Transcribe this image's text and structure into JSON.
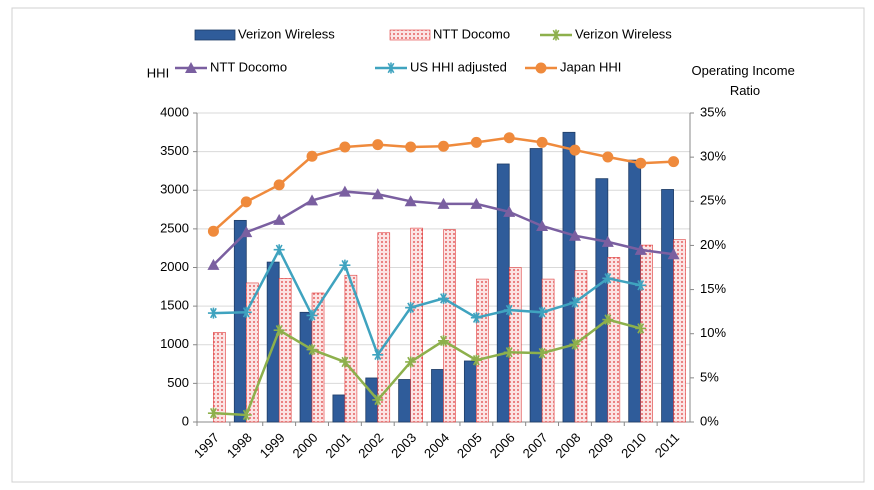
{
  "chart_data": {
    "type": "bar",
    "y_label": "HHI",
    "y2_label": "Operating  Income Ratio",
    "categories": [
      "1997",
      "1998",
      "1999",
      "2000",
      "2001",
      "2002",
      "2003",
      "2004",
      "2005",
      "2006",
      "2007",
      "2008",
      "2009",
      "2010",
      "2011"
    ],
    "series": [
      {
        "name": "Verizon Wireless",
        "type": "bar",
        "color": "#2f5c9a",
        "axis": "y",
        "values": [
          null,
          2610,
          2070,
          1420,
          350,
          570,
          550,
          680,
          790,
          3340,
          3540,
          3750,
          3150,
          3390,
          3010
        ]
      },
      {
        "name": "NTT Docomo",
        "type": "bar",
        "color": "#e03c3c",
        "axis": "y",
        "values": [
          1160,
          1800,
          1860,
          1670,
          1900,
          2450,
          2510,
          2490,
          1850,
          2000,
          1850,
          1960,
          2130,
          2290,
          2360
        ]
      },
      {
        "name": "Verizon Wireless",
        "type": "line",
        "marker": "star",
        "color": "#8db04c",
        "axis": "y2",
        "values": [
          1.0,
          0.8,
          10.4,
          8.2,
          6.8,
          2.5,
          6.8,
          9.2,
          7.0,
          7.9,
          7.8,
          8.8,
          11.6,
          10.6,
          null
        ]
      },
      {
        "name": "NTT Docomo",
        "type": "line",
        "marker": "triangle",
        "color": "#7a5fa0",
        "axis": "y2",
        "values": [
          17.8,
          21.5,
          22.9,
          25.1,
          26.1,
          25.8,
          25.0,
          24.7,
          24.7,
          23.8,
          22.2,
          21.1,
          20.4,
          19.5,
          19.0
        ]
      },
      {
        "name": "US HHI adjusted",
        "type": "line",
        "marker": "star",
        "color": "#3fa3bf",
        "axis": "y",
        "values": [
          1410,
          1420,
          2230,
          1380,
          2030,
          870,
          1480,
          1600,
          1350,
          1450,
          1420,
          1550,
          1860,
          1770,
          null
        ]
      },
      {
        "name": "Japan HHI",
        "type": "line",
        "marker": "circle",
        "color": "#ef8a3c",
        "axis": "y",
        "values": [
          2470,
          2850,
          3070,
          3440,
          3560,
          3590,
          3560,
          3570,
          3620,
          3680,
          3620,
          3520,
          3430,
          3350,
          3370
        ]
      }
    ],
    "ylim": [
      0,
      4000
    ],
    "yticks": [
      0,
      500,
      1000,
      1500,
      2000,
      2500,
      3000,
      3500,
      4000
    ],
    "y2lim": [
      0,
      35
    ],
    "y2ticks": [
      {
        "value": 0,
        "label": "0%"
      },
      {
        "value": 5,
        "label": "5%"
      },
      {
        "value": 10,
        "label": "10%"
      },
      {
        "value": 15,
        "label": "15%"
      },
      {
        "value": 20,
        "label": "20%"
      },
      {
        "value": 25,
        "label": "25%"
      },
      {
        "value": 30,
        "label": "30%"
      },
      {
        "value": 35,
        "label": "35%"
      }
    ],
    "grid": true
  }
}
